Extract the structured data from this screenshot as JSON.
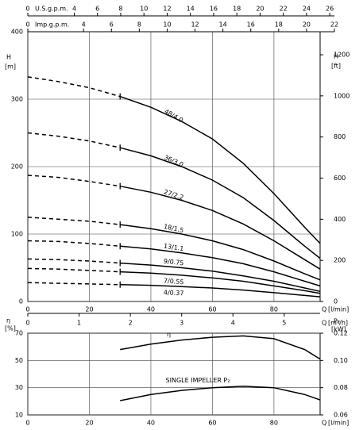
{
  "chart_data": [
    {
      "type": "line",
      "x": [
        0,
        10,
        20,
        30,
        40,
        50,
        60,
        70,
        80,
        90,
        95
      ],
      "xlim": [
        0,
        95
      ],
      "xticks": [
        0,
        20,
        40,
        60,
        80
      ],
      "x_label": "Q",
      "x_unit": "[l/min]",
      "ylim": [
        0,
        400
      ],
      "yticks": [
        0,
        100,
        200,
        300,
        400
      ],
      "y_label": "H",
      "y_unit": "[m]",
      "y2lim": [
        0,
        1312
      ],
      "y2ticks": [
        0,
        200,
        400,
        600,
        800,
        1000,
        1200
      ],
      "y2_label": "H",
      "y2_unit": "[ft]",
      "grid": true,
      "top_axes": [
        {
          "name": "U.S.g.p.m.",
          "xlim": [
            0,
            26.4
          ],
          "xticks": [
            0,
            4,
            6,
            8,
            10,
            12,
            14,
            16,
            18,
            20,
            22,
            24,
            26
          ]
        },
        {
          "name": "Imp.g.p.m.",
          "xlim": [
            0,
            22
          ],
          "xticks": [
            0,
            4,
            6,
            8,
            10,
            12,
            14,
            16,
            18,
            20,
            22
          ]
        }
      ],
      "series": [
        {
          "name": "48/4.0",
          "color": "#000000",
          "values": [
            333,
            326,
            317,
            304,
            288,
            267,
            241,
            205,
            160,
            110,
            86
          ]
        },
        {
          "name": "36/3.0",
          "color": "#000000",
          "values": [
            250,
            245,
            238,
            228,
            216,
            200,
            180,
            154,
            120,
            82,
            64
          ]
        },
        {
          "name": "27/2.2",
          "color": "#000000",
          "values": [
            187,
            184,
            178,
            171,
            162,
            150,
            135,
            115,
            90,
            62,
            48
          ]
        },
        {
          "name": "18/1.5",
          "color": "#000000",
          "values": [
            125,
            122,
            119,
            114,
            108,
            100,
            90,
            77,
            60,
            41,
            32
          ]
        },
        {
          "name": "13/1.1",
          "color": "#000000",
          "values": [
            90,
            89,
            86,
            82,
            78,
            72,
            65,
            56,
            44,
            30,
            23
          ]
        },
        {
          "name": "9/0.75",
          "color": "#000000",
          "values": [
            63,
            62,
            60,
            57,
            54,
            50,
            45,
            38,
            30,
            20,
            15
          ]
        },
        {
          "name": "7/0.55",
          "color": "#000000",
          "values": [
            49,
            48,
            46,
            44,
            42,
            39,
            35,
            30,
            23,
            16,
            12
          ]
        },
        {
          "name": "4/0.37",
          "color": "#000000",
          "values": [
            28,
            27,
            26,
            25,
            24,
            22,
            20,
            17,
            13,
            9,
            7
          ]
        }
      ]
    },
    {
      "type": "line",
      "x": [
        30,
        40,
        50,
        60,
        70,
        80,
        90,
        95
      ],
      "xlim": [
        0,
        95
      ],
      "xticks": [
        0,
        20,
        40,
        60,
        80
      ],
      "x_label": "Q",
      "x_unit": "[l/min]",
      "ylim": [
        10,
        70
      ],
      "yticks": [
        10,
        30,
        50,
        70
      ],
      "y_label": "η",
      "y_unit": "[%]",
      "y2lim": [
        0.06,
        0.12
      ],
      "y2ticks": [
        0.06,
        0.08,
        {
          "value": 0.1,
          "label": "0.10"
        },
        0.12
      ],
      "y2_label": "P₂",
      "y2_unit": "[kW]",
      "grid": true,
      "top_axes": [
        {
          "name": "Q",
          "unit": "[m³/h]",
          "xlim": [
            0,
            5.7
          ],
          "xticks": [
            0,
            1,
            2,
            3,
            4,
            5
          ]
        }
      ],
      "series": [
        {
          "name": "η",
          "color": "#000000",
          "values": [
            58,
            62,
            65,
            67,
            68,
            66,
            58,
            51
          ]
        },
        {
          "name": "SINGLE IMPELLER P₂",
          "color": "#000000",
          "axis": "y2",
          "values": [
            0.0705,
            0.075,
            0.078,
            0.08,
            0.081,
            0.08,
            0.075,
            0.071
          ]
        }
      ]
    }
  ]
}
